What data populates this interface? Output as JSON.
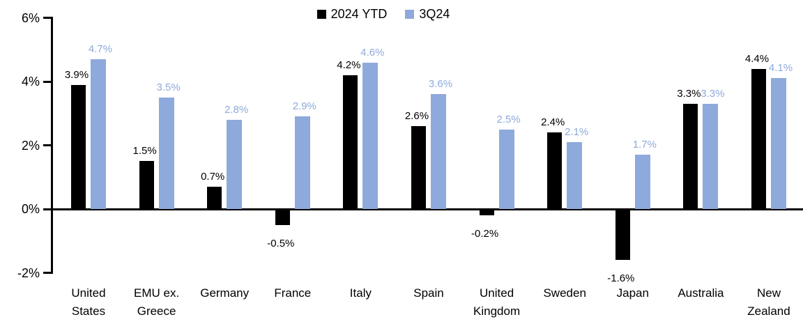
{
  "chart_data": {
    "type": "bar",
    "title": "",
    "categories": [
      "United States",
      "EMU ex. Greece",
      "Germany",
      "France",
      "Italy",
      "Spain",
      "United Kingdom",
      "Sweden",
      "Japan",
      "Australia",
      "New Zealand"
    ],
    "category_label_lines": [
      [
        "United",
        "States"
      ],
      [
        "EMU ex.",
        "Greece"
      ],
      [
        "Germany"
      ],
      [
        "France"
      ],
      [
        "Italy"
      ],
      [
        "Spain"
      ],
      [
        "United",
        "Kingdom"
      ],
      [
        "Sweden"
      ],
      [
        "Japan"
      ],
      [
        "Australia"
      ],
      [
        "New",
        "Zealand"
      ]
    ],
    "series": [
      {
        "name": "2024 YTD",
        "color": "#000000",
        "values": [
          3.9,
          1.5,
          0.7,
          -0.5,
          4.2,
          2.6,
          -0.2,
          2.4,
          -1.6,
          3.3,
          4.4
        ],
        "labels": [
          "3.9%",
          "1.5%",
          "0.7%",
          "-0.5%",
          "4.2%",
          "2.6%",
          "-0.2%",
          "2.4%",
          "-1.6%",
          "3.3%",
          "4.4%"
        ]
      },
      {
        "name": "3Q24",
        "color": "#8EA9DB",
        "values": [
          4.7,
          3.5,
          2.8,
          2.9,
          4.6,
          3.6,
          2.5,
          2.1,
          1.7,
          3.3,
          4.1
        ],
        "labels": [
          "4.7%",
          "3.5%",
          "2.8%",
          "2.9%",
          "4.6%",
          "3.6%",
          "2.5%",
          "2.1%",
          "1.7%",
          "3.3%",
          "4.1%"
        ]
      }
    ],
    "y_axis": {
      "ticks": [
        "6%",
        "4%",
        "2%",
        "0%",
        "-2%"
      ],
      "tick_values": [
        6,
        4,
        2,
        0,
        -2
      ],
      "ylim": [
        -2,
        6
      ],
      "unit": "%",
      "grid": false
    },
    "legend": {
      "position": "top-center",
      "entries": [
        "2024 YTD",
        "3Q24"
      ]
    }
  },
  "colors": {
    "background": "#ffffff",
    "axis": "#000000",
    "series_2024ytd": "#000000",
    "series_3q24": "#8EA9DB"
  }
}
